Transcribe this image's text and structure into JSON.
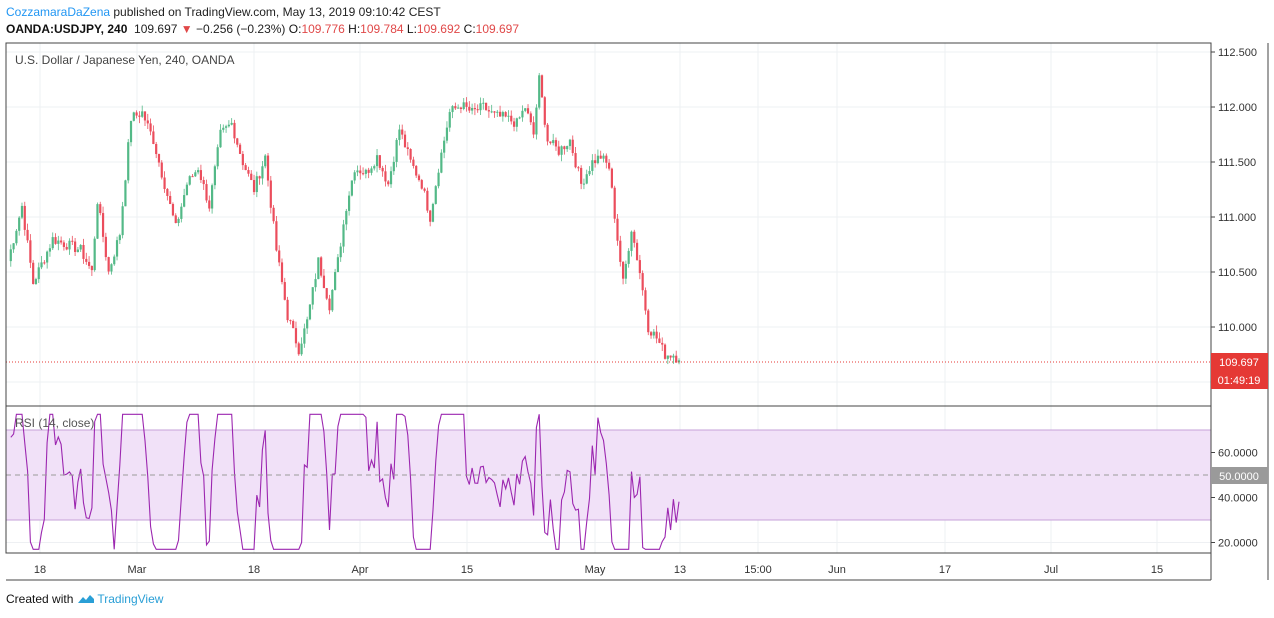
{
  "header": {
    "author": "CozzamaraDaZena",
    "published": " published on TradingView.com, May 13, 2019 09:10:42 CEST",
    "symbol": "OANDA:USDJPY, 240",
    "last": "109.697",
    "change_arrow": "▼",
    "change": "−0.256 (−0.23%)",
    "open_label": "O:",
    "open": "109.776",
    "high_label": "H:",
    "high": "109.784",
    "low_label": "L:",
    "low": "109.692",
    "close_label": "C:",
    "close": "109.697"
  },
  "footer": {
    "created_with": "Created with",
    "brand": "TradingView"
  },
  "colors": {
    "up": "#53b987",
    "down": "#eb4d5c",
    "rsi": "#9c27b0",
    "rsi_band": "#f1e1f8",
    "last_price": "#e53935",
    "grid": "#eef0f3",
    "brand": "#2a9fd6"
  },
  "chart_data": [
    {
      "type": "candlestick",
      "title": "U.S. Dollar / Japanese Yen, 240, OANDA",
      "ylim": [
        109.5,
        112.5
      ],
      "y_ticks": [
        "112.500",
        "112.000",
        "111.500",
        "111.000",
        "110.500",
        "110.000"
      ],
      "x_ticks": [
        "18",
        "Mar",
        "18",
        "Apr",
        "15",
        "May",
        "13",
        "15:00",
        "Jun",
        "17",
        "Jul",
        "15"
      ],
      "last_price": "109.697",
      "countdown": "01:49:19",
      "anchors": [
        [
          0,
          110.6
        ],
        [
          5,
          111.1
        ],
        [
          9,
          110.4
        ],
        [
          16,
          110.8
        ],
        [
          26,
          110.7
        ],
        [
          30,
          110.5
        ],
        [
          32,
          111.15
        ],
        [
          36,
          110.5
        ],
        [
          40,
          110.85
        ],
        [
          44,
          111.9
        ],
        [
          48,
          111.95
        ],
        [
          52,
          111.7
        ],
        [
          56,
          111.3
        ],
        [
          60,
          110.9
        ],
        [
          64,
          111.3
        ],
        [
          68,
          111.45
        ],
        [
          72,
          111.1
        ],
        [
          76,
          111.75
        ],
        [
          80,
          111.85
        ],
        [
          84,
          111.5
        ],
        [
          88,
          111.25
        ],
        [
          92,
          111.55
        ],
        [
          96,
          110.7
        ],
        [
          100,
          110.1
        ],
        [
          104,
          109.8
        ],
        [
          107,
          110.05
        ],
        [
          111,
          110.6
        ],
        [
          115,
          110.2
        ],
        [
          118,
          110.6
        ],
        [
          121,
          111.1
        ],
        [
          124,
          111.45
        ],
        [
          128,
          111.4
        ],
        [
          132,
          111.55
        ],
        [
          136,
          111.3
        ],
        [
          140,
          111.8
        ],
        [
          144,
          111.5
        ],
        [
          148,
          111.3
        ],
        [
          151,
          111.0
        ],
        [
          154,
          111.45
        ],
        [
          158,
          111.95
        ],
        [
          162,
          112.02
        ],
        [
          166,
          111.95
        ],
        [
          170,
          112.0
        ],
        [
          174,
          111.92
        ],
        [
          178,
          111.9
        ],
        [
          182,
          111.85
        ],
        [
          185,
          112.0
        ],
        [
          188,
          111.75
        ],
        [
          190,
          112.25
        ],
        [
          193,
          111.7
        ],
        [
          197,
          111.6
        ],
        [
          201,
          111.7
        ],
        [
          205,
          111.3
        ],
        [
          209,
          111.5
        ],
        [
          212,
          111.55
        ],
        [
          215,
          111.45
        ],
        [
          218,
          110.8
        ],
        [
          220,
          110.4
        ],
        [
          223,
          110.9
        ],
        [
          226,
          110.5
        ],
        [
          229,
          110.0
        ],
        [
          232,
          109.9
        ],
        [
          235,
          109.75
        ],
        [
          238,
          109.75
        ],
        [
          240,
          109.7
        ]
      ]
    },
    {
      "type": "line",
      "title": "RSI (14, close)",
      "ylim": [
        15,
        77
      ],
      "y_ticks": [
        "60.0000",
        "50.0000",
        "40.0000",
        "20.0000"
      ],
      "band": [
        30,
        70
      ],
      "midline": 50,
      "current": "50.0000"
    }
  ]
}
